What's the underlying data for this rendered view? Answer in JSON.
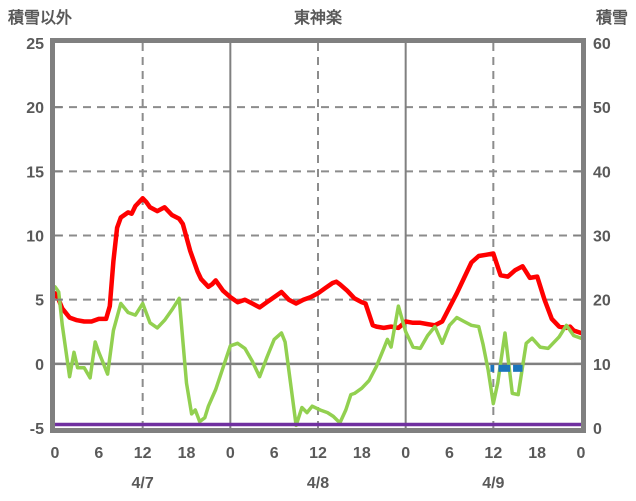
{
  "header": {
    "left_axis_title": "積雪以外",
    "chart_title": "東神楽",
    "right_axis_title": "積雪"
  },
  "chart_data": {
    "type": "line",
    "title": "東神楽",
    "grid": "on",
    "legend": "none",
    "x_axis": {
      "unit": "hour",
      "range_hours": [
        0,
        72
      ],
      "tick_hours": [
        0,
        6,
        12,
        18,
        24,
        30,
        36,
        42,
        48,
        54,
        60,
        66,
        72
      ],
      "tick_labels": [
        "0",
        "6",
        "12",
        "18",
        "0",
        "6",
        "12",
        "18",
        "0",
        "6",
        "12",
        "18",
        "0"
      ],
      "day_labels": [
        {
          "label": "4/7",
          "hour": 12
        },
        {
          "label": "4/8",
          "hour": 36
        },
        {
          "label": "4/9",
          "hour": 60
        }
      ],
      "gridlines_solid_hours": [
        24,
        48
      ],
      "gridlines_dashed_hours": [
        12,
        36,
        60
      ]
    },
    "y_left": {
      "title": "積雪以外",
      "min": -5,
      "max": 25,
      "ticks": [
        -5,
        0,
        5,
        10,
        15,
        20,
        25
      ],
      "gridlines_dashed": [
        5,
        10,
        15,
        20
      ],
      "zero_line": 0
    },
    "y_right": {
      "title": "積雪",
      "min": 0,
      "max": 60,
      "ticks": [
        0,
        10,
        20,
        30,
        40,
        50,
        60
      ]
    },
    "series": [
      {
        "name": "red-line",
        "axis": "left",
        "color": "#ff0000",
        "width": 4.5,
        "points": [
          [
            0,
            5.5
          ],
          [
            0.5,
            5.0
          ],
          [
            1,
            4.3
          ],
          [
            2,
            3.6
          ],
          [
            3,
            3.4
          ],
          [
            4,
            3.3
          ],
          [
            5,
            3.3
          ],
          [
            6,
            3.5
          ],
          [
            7,
            3.5
          ],
          [
            7.5,
            4.5
          ],
          [
            8,
            8.0
          ],
          [
            8.5,
            10.6
          ],
          [
            9,
            11.4
          ],
          [
            10,
            11.8
          ],
          [
            10.5,
            11.7
          ],
          [
            11,
            12.3
          ],
          [
            12,
            12.9
          ],
          [
            12.5,
            12.6
          ],
          [
            13,
            12.2
          ],
          [
            14,
            11.9
          ],
          [
            15,
            12.2
          ],
          [
            16,
            11.6
          ],
          [
            17,
            11.3
          ],
          [
            17.5,
            10.9
          ],
          [
            18.5,
            8.8
          ],
          [
            19.5,
            7.2
          ],
          [
            20,
            6.6
          ],
          [
            21,
            6.0
          ],
          [
            21.5,
            6.2
          ],
          [
            22,
            6.5
          ],
          [
            23,
            5.7
          ],
          [
            24,
            5.2
          ],
          [
            25,
            4.8
          ],
          [
            26,
            5.0
          ],
          [
            27,
            4.7
          ],
          [
            28,
            4.4
          ],
          [
            29,
            4.8
          ],
          [
            30,
            5.2
          ],
          [
            31,
            5.6
          ],
          [
            32,
            5.0
          ],
          [
            33,
            4.7
          ],
          [
            34,
            5.0
          ],
          [
            35,
            5.2
          ],
          [
            36,
            5.5
          ],
          [
            37,
            5.9
          ],
          [
            38,
            6.3
          ],
          [
            38.5,
            6.4
          ],
          [
            39,
            6.2
          ],
          [
            40,
            5.7
          ],
          [
            41,
            5.1
          ],
          [
            42,
            4.8
          ],
          [
            42.5,
            4.7
          ],
          [
            43.5,
            3.0
          ],
          [
            44,
            2.9
          ],
          [
            45,
            2.8
          ],
          [
            46,
            2.9
          ],
          [
            47,
            2.8
          ],
          [
            48,
            3.3
          ],
          [
            49,
            3.2
          ],
          [
            50,
            3.2
          ],
          [
            51,
            3.1
          ],
          [
            52,
            3.0
          ],
          [
            53,
            3.3
          ],
          [
            54,
            4.4
          ],
          [
            55,
            5.5
          ],
          [
            56,
            6.7
          ],
          [
            57,
            7.9
          ],
          [
            58,
            8.4
          ],
          [
            59,
            8.5
          ],
          [
            60,
            8.6
          ],
          [
            61,
            6.9
          ],
          [
            62,
            6.8
          ],
          [
            63,
            7.3
          ],
          [
            64,
            7.6
          ],
          [
            65,
            6.7
          ],
          [
            66,
            6.8
          ],
          [
            67,
            5.0
          ],
          [
            68,
            3.5
          ],
          [
            69,
            2.9
          ],
          [
            70,
            2.8
          ],
          [
            70.5,
            2.9
          ],
          [
            71,
            2.6
          ],
          [
            72,
            2.4
          ]
        ]
      },
      {
        "name": "green-line",
        "axis": "left",
        "color": "#92d050",
        "width": 3.5,
        "points": [
          [
            0,
            6.0
          ],
          [
            0.5,
            5.6
          ],
          [
            1,
            3.0
          ],
          [
            2,
            -1.0
          ],
          [
            2.6,
            0.9
          ],
          [
            3.1,
            -0.3
          ],
          [
            4,
            -0.3
          ],
          [
            4.8,
            -1.1
          ],
          [
            5.5,
            1.7
          ],
          [
            6,
            0.9
          ],
          [
            6.5,
            0.2
          ],
          [
            7.2,
            -0.8
          ],
          [
            8,
            2.6
          ],
          [
            9,
            4.7
          ],
          [
            10,
            4.0
          ],
          [
            11,
            3.8
          ],
          [
            12,
            4.7
          ],
          [
            13,
            3.2
          ],
          [
            14,
            2.8
          ],
          [
            15,
            3.4
          ],
          [
            16,
            4.2
          ],
          [
            17,
            5.1
          ],
          [
            18,
            -1.5
          ],
          [
            18.7,
            -3.9
          ],
          [
            19.2,
            -3.6
          ],
          [
            19.8,
            -4.5
          ],
          [
            20.5,
            -4.2
          ],
          [
            21,
            -3.3
          ],
          [
            22,
            -2.0
          ],
          [
            23,
            -0.3
          ],
          [
            24,
            1.4
          ],
          [
            25,
            1.6
          ],
          [
            26,
            1.2
          ],
          [
            27,
            0.2
          ],
          [
            28,
            -1.0
          ],
          [
            29,
            0.5
          ],
          [
            30,
            1.9
          ],
          [
            31,
            2.4
          ],
          [
            31.5,
            1.7
          ],
          [
            32.5,
            -2.6
          ],
          [
            33,
            -4.8
          ],
          [
            33.8,
            -3.4
          ],
          [
            34.5,
            -3.8
          ],
          [
            35.2,
            -3.3
          ],
          [
            36.3,
            -3.6
          ],
          [
            37.3,
            -3.8
          ],
          [
            38.1,
            -4.1
          ],
          [
            39,
            -4.6
          ],
          [
            39.8,
            -3.6
          ],
          [
            40.5,
            -2.4
          ],
          [
            41,
            -2.3
          ],
          [
            42,
            -1.9
          ],
          [
            43,
            -1.3
          ],
          [
            44,
            -0.2
          ],
          [
            45,
            1.2
          ],
          [
            45.5,
            1.9
          ],
          [
            46,
            1.3
          ],
          [
            47,
            4.5
          ],
          [
            48,
            2.5
          ],
          [
            49,
            1.3
          ],
          [
            50,
            1.2
          ],
          [
            51,
            2.2
          ],
          [
            52,
            2.9
          ],
          [
            53,
            1.6
          ],
          [
            54,
            3.0
          ],
          [
            55,
            3.6
          ],
          [
            56,
            3.3
          ],
          [
            57,
            3.0
          ],
          [
            58,
            2.9
          ],
          [
            58.6,
            1.5
          ],
          [
            59.3,
            -0.5
          ],
          [
            60,
            -3.1
          ],
          [
            60.6,
            -1.5
          ],
          [
            61.6,
            2.4
          ],
          [
            62.6,
            -2.3
          ],
          [
            63.4,
            -2.4
          ],
          [
            64.5,
            1.6
          ],
          [
            65.3,
            2.0
          ],
          [
            66.4,
            1.3
          ],
          [
            67.5,
            1.2
          ],
          [
            69,
            2.1
          ],
          [
            70,
            3.0
          ],
          [
            71,
            2.2
          ],
          [
            72,
            2.0
          ]
        ]
      },
      {
        "name": "snow-depth-line",
        "axis": "right",
        "color": "#7030a0",
        "width": 3.5,
        "points": [
          [
            0,
            0
          ],
          [
            72,
            0
          ]
        ]
      },
      {
        "name": "blue-marks",
        "axis": "left",
        "type": "segments",
        "color": "#1b75bc",
        "width": 7,
        "value": -0.35,
        "segments": [
          [
            59.6,
            60.1
          ],
          [
            60.7,
            62.3
          ],
          [
            62.7,
            64.0
          ]
        ]
      }
    ],
    "frame_color": "#808080",
    "grid_color": "#8c8c8c",
    "text_color": "#595959"
  }
}
